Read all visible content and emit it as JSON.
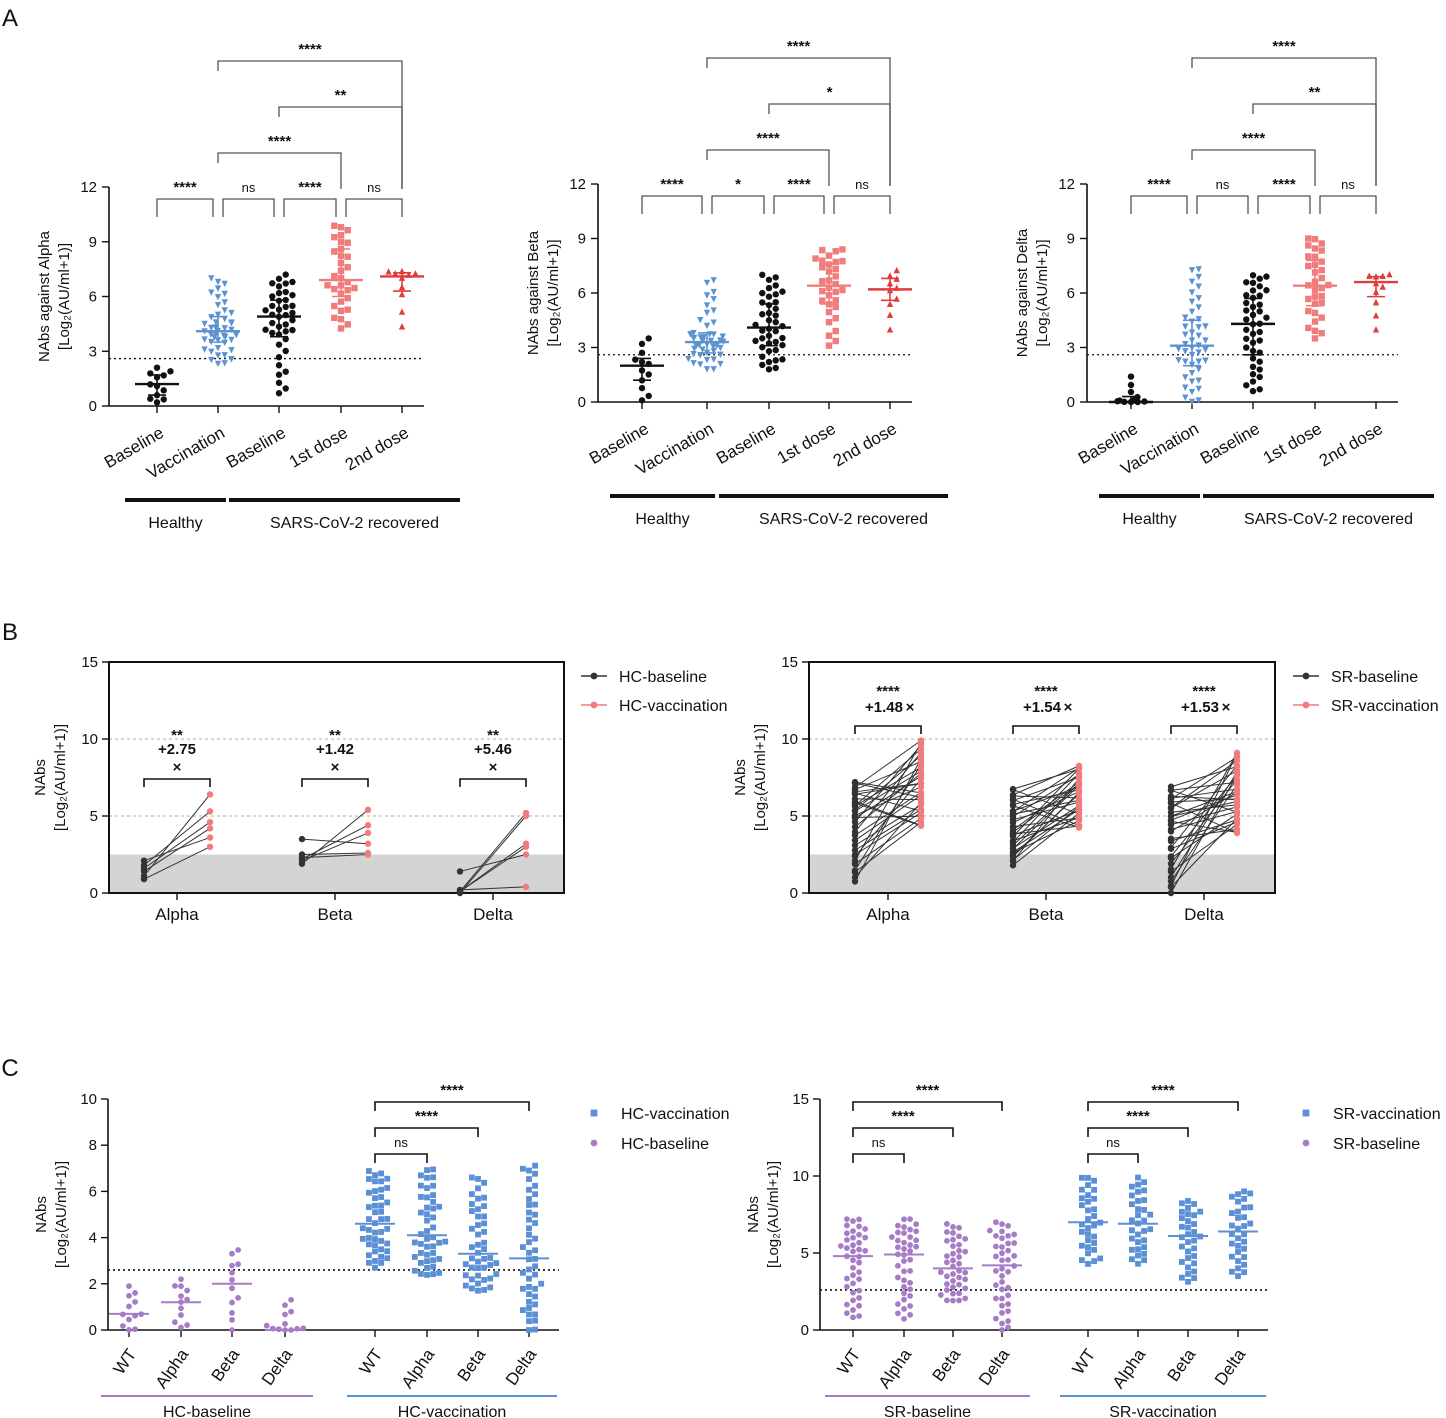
{
  "panel_labels": [
    "A",
    "B",
    "C"
  ],
  "colors": {
    "black": "#111111",
    "blue": "#5b93d1",
    "salmon": "#f07c7c",
    "red": "#e03c3c",
    "purple": "#a57cc5",
    "blueSquare": "#5b8fd6",
    "grey_band": "#d3d4d3",
    "grey_line": "#555555"
  },
  "chart_data": [
    {
      "id": "A1",
      "type": "scatter",
      "ylabel_line1": "NAbs against Alpha",
      "ylabel_line2": "[Log₂(AU/ml+1)]",
      "ylim": [
        0,
        12
      ],
      "yticks": [
        0,
        3,
        6,
        9,
        12
      ],
      "threshold": 2.6,
      "categories": [
        "Baseline",
        "Vaccination",
        "Baseline",
        "1st dose",
        "2nd dose"
      ],
      "groups": [
        {
          "label": "Healthy",
          "from": 0,
          "to": 1
        },
        {
          "label": "SARS-CoV-2 recovered",
          "from": 2,
          "to": 4
        }
      ],
      "series": [
        {
          "name": "HC-baseline",
          "shape": "circle",
          "color": "black",
          "n": 12,
          "median": 1.2,
          "min": 0.2,
          "max": 2.1,
          "q1": 0.6,
          "q3": 1.7
        },
        {
          "name": "HC-vaccination",
          "shape": "triangle-down",
          "color": "blue",
          "n": 45,
          "median": 4.1,
          "min": 2.3,
          "max": 7.1,
          "q1": 3.5,
          "q3": 4.9
        },
        {
          "name": "SR-baseline",
          "shape": "circle",
          "color": "black",
          "n": 40,
          "median": 4.9,
          "min": 0.7,
          "max": 7.2,
          "q1": 3.8,
          "q3": 5.8
        },
        {
          "name": "SR-1st dose",
          "shape": "square",
          "color": "salmon",
          "n": 32,
          "median": 6.9,
          "min": 4.2,
          "max": 10.0,
          "q1": 6.0,
          "q3": 8.6
        },
        {
          "name": "SR-2nd dose",
          "shape": "triangle-up",
          "color": "red",
          "n": 10,
          "median": 7.1,
          "min": 4.3,
          "max": 7.5,
          "q1": 6.3,
          "q3": 7.3
        }
      ],
      "comparisons": [
        {
          "from": 0,
          "to": 1,
          "label": "****",
          "level": 0
        },
        {
          "from": 1,
          "to": 2,
          "label": "ns",
          "level": 0
        },
        {
          "from": 2,
          "to": 3,
          "label": "****",
          "level": 0
        },
        {
          "from": 3,
          "to": 4,
          "label": "ns",
          "level": 0
        },
        {
          "from": 1,
          "to": 3,
          "label": "****",
          "level": 1
        },
        {
          "from": 2,
          "to": 4,
          "label": "**",
          "level": 2
        },
        {
          "from": 1,
          "to": 4,
          "label": "****",
          "level": 3
        }
      ]
    },
    {
      "id": "A2",
      "type": "scatter",
      "ylabel_line1": "NAbs against Beta",
      "ylabel_line2": "[Log₂(AU/ml+1)]",
      "ylim": [
        0,
        12
      ],
      "yticks": [
        0,
        3,
        6,
        9,
        12
      ],
      "threshold": 2.6,
      "categories": [
        "Baseline",
        "Vaccination",
        "Baseline",
        "1st dose",
        "2nd dose"
      ],
      "groups": [
        {
          "label": "Healthy",
          "from": 0,
          "to": 1
        },
        {
          "label": "SARS-CoV-2 recovered",
          "from": 2,
          "to": 4
        }
      ],
      "series": [
        {
          "name": "HC-baseline",
          "shape": "circle",
          "color": "black",
          "n": 12,
          "median": 2.0,
          "min": 0.0,
          "max": 3.5,
          "q1": 1.2,
          "q3": 2.4
        },
        {
          "name": "HC-vaccination",
          "shape": "triangle-down",
          "color": "blue",
          "n": 45,
          "median": 3.3,
          "min": 1.8,
          "max": 6.7,
          "q1": 2.7,
          "q3": 3.8
        },
        {
          "name": "SR-baseline",
          "shape": "circle",
          "color": "black",
          "n": 40,
          "median": 4.1,
          "min": 1.8,
          "max": 7.0,
          "q1": 3.1,
          "q3": 5.4
        },
        {
          "name": "SR-1st dose",
          "shape": "square",
          "color": "salmon",
          "n": 32,
          "median": 6.4,
          "min": 3.1,
          "max": 8.4,
          "q1": 5.4,
          "q3": 7.6
        },
        {
          "name": "SR-2nd dose",
          "shape": "triangle-up",
          "color": "red",
          "n": 10,
          "median": 6.2,
          "min": 4.0,
          "max": 7.3,
          "q1": 5.6,
          "q3": 6.8
        }
      ],
      "comparisons": [
        {
          "from": 0,
          "to": 1,
          "label": "****",
          "level": 0
        },
        {
          "from": 1,
          "to": 2,
          "label": "*",
          "level": 0
        },
        {
          "from": 2,
          "to": 3,
          "label": "****",
          "level": 0
        },
        {
          "from": 3,
          "to": 4,
          "label": "ns",
          "level": 0
        },
        {
          "from": 1,
          "to": 3,
          "label": "****",
          "level": 1
        },
        {
          "from": 2,
          "to": 4,
          "label": "*",
          "level": 2
        },
        {
          "from": 1,
          "to": 4,
          "label": "****",
          "level": 3
        }
      ]
    },
    {
      "id": "A3",
      "type": "scatter",
      "ylabel_line1": "NAbs against Delta",
      "ylabel_line2": "[Log₂(AU/ml+1)]",
      "ylim": [
        0,
        12
      ],
      "yticks": [
        0,
        3,
        6,
        9,
        12
      ],
      "threshold": 2.6,
      "categories": [
        "Baseline",
        "Vaccination",
        "Baseline",
        "1st dose",
        "2nd dose"
      ],
      "groups": [
        {
          "label": "Healthy",
          "from": 0,
          "to": 1
        },
        {
          "label": "SARS-CoV-2 recovered",
          "from": 2,
          "to": 4
        }
      ],
      "series": [
        {
          "name": "HC-baseline",
          "shape": "circle",
          "color": "black",
          "n": 12,
          "median": 0.0,
          "min": 0.0,
          "max": 1.4,
          "q1": 0.0,
          "q3": 0.3
        },
        {
          "name": "HC-vaccination",
          "shape": "triangle-down",
          "color": "blue",
          "n": 45,
          "median": 3.1,
          "min": 0.0,
          "max": 7.4,
          "q1": 2.0,
          "q3": 4.5
        },
        {
          "name": "SR-baseline",
          "shape": "circle",
          "color": "black",
          "n": 40,
          "median": 4.3,
          "min": 0.6,
          "max": 7.1,
          "q1": 2.6,
          "q3": 5.7
        },
        {
          "name": "SR-1st dose",
          "shape": "square",
          "color": "salmon",
          "n": 32,
          "median": 6.4,
          "min": 3.5,
          "max": 9.1,
          "q1": 5.3,
          "q3": 7.8
        },
        {
          "name": "SR-2nd dose",
          "shape": "triangle-up",
          "color": "red",
          "n": 10,
          "median": 6.6,
          "min": 4.0,
          "max": 7.1,
          "q1": 5.8,
          "q3": 6.9
        }
      ],
      "comparisons": [
        {
          "from": 0,
          "to": 1,
          "label": "****",
          "level": 0
        },
        {
          "from": 1,
          "to": 2,
          "label": "ns",
          "level": 0
        },
        {
          "from": 2,
          "to": 3,
          "label": "****",
          "level": 0
        },
        {
          "from": 3,
          "to": 4,
          "label": "ns",
          "level": 0
        },
        {
          "from": 1,
          "to": 3,
          "label": "****",
          "level": 1
        },
        {
          "from": 2,
          "to": 4,
          "label": "**",
          "level": 2
        },
        {
          "from": 1,
          "to": 4,
          "label": "****",
          "level": 3
        }
      ]
    },
    {
      "id": "B1",
      "type": "paired-line",
      "ylabel_line1": "NAbs",
      "ylabel_line2": "[Log₂(AU/ml+1)]",
      "ylim": [
        0,
        15
      ],
      "yticks": [
        0,
        5,
        10,
        15
      ],
      "gridlines": [
        5,
        10
      ],
      "band_max": 2.5,
      "categories": [
        "Alpha",
        "Beta",
        "Delta"
      ],
      "legend": [
        "HC-baseline",
        "HC-vaccination"
      ],
      "pairs": [
        {
          "before": [
            0.9,
            1.1,
            1.4,
            1.6,
            1.8,
            2.1
          ],
          "after": [
            3.0,
            3.6,
            4.2,
            4.6,
            5.3,
            6.4
          ]
        },
        {
          "before": [
            1.9,
            2.1,
            2.2,
            2.3,
            2.5,
            3.5
          ],
          "after": [
            2.5,
            2.6,
            3.2,
            3.9,
            4.4,
            5.4
          ]
        },
        {
          "before": [
            0.0,
            0.1,
            0.1,
            0.2,
            1.4,
            0.1
          ],
          "after": [
            0.4,
            2.5,
            3.0,
            3.2,
            5.0,
            5.2
          ]
        }
      ],
      "annotations": [
        {
          "stars": "**",
          "fold": "+2.75",
          "mark": "×"
        },
        {
          "stars": "**",
          "fold": "+1.42",
          "mark": "×"
        },
        {
          "stars": "**",
          "fold": "+5.46",
          "mark": "×"
        }
      ]
    },
    {
      "id": "B2",
      "type": "paired-line",
      "ylabel_line1": "NAbs",
      "ylabel_line2": "[Log₂(AU/ml+1)]",
      "ylim": [
        0,
        15
      ],
      "yticks": [
        0,
        5,
        10,
        15
      ],
      "gridlines": [
        5,
        10
      ],
      "band_max": 2.5,
      "categories": [
        "Alpha",
        "Beta",
        "Delta"
      ],
      "legend": [
        "SR-baseline",
        "SR-vaccination"
      ],
      "pairs": [
        {
          "n": 32,
          "before_median": 4.9,
          "before_min": 0.7,
          "before_max": 7.2,
          "after_median": 6.9,
          "after_min": 4.3,
          "after_max": 10.0
        },
        {
          "n": 32,
          "before_median": 4.1,
          "before_min": 1.8,
          "before_max": 6.8,
          "after_median": 6.4,
          "after_min": 4.2,
          "after_max": 8.3
        },
        {
          "n": 32,
          "before_median": 4.3,
          "before_min": 0.0,
          "before_max": 6.9,
          "after_median": 6.4,
          "after_min": 3.9,
          "after_max": 9.1
        }
      ],
      "annotations": [
        {
          "stars": "****",
          "fold": "+1.48",
          "mark": "×"
        },
        {
          "stars": "****",
          "fold": "+1.54",
          "mark": "×"
        },
        {
          "stars": "****",
          "fold": "+1.53",
          "mark": "×"
        }
      ]
    },
    {
      "id": "C1",
      "type": "scatter",
      "ylabel_line1": "NAbs",
      "ylabel_line2": "[Log₂(AU/ml+1)]",
      "ylim": [
        0,
        10
      ],
      "yticks": [
        0,
        2,
        4,
        6,
        8,
        10
      ],
      "threshold": 2.6,
      "categories": [
        "WT",
        "Alpha",
        "Beta",
        "Delta",
        "WT",
        "Alpha",
        "Beta",
        "Delta"
      ],
      "groups": [
        {
          "label": "HC-baseline",
          "from": 0,
          "to": 3,
          "color": "purple"
        },
        {
          "label": "HC-vaccination",
          "from": 4,
          "to": 7,
          "color": "blue"
        }
      ],
      "legend": [
        {
          "label": "HC-vaccination",
          "shape": "square",
          "color": "blueSquare"
        },
        {
          "label": "HC-baseline",
          "shape": "circle",
          "color": "purple"
        }
      ],
      "series": [
        {
          "name": "HC-baseline WT",
          "shape": "circle",
          "color": "purple",
          "n": 12,
          "median": 0.7,
          "min": 0.0,
          "max": 1.9
        },
        {
          "name": "HC-baseline Alpha",
          "shape": "circle",
          "color": "purple",
          "n": 12,
          "median": 1.2,
          "min": 0.0,
          "max": 2.2
        },
        {
          "name": "HC-baseline Beta",
          "shape": "circle",
          "color": "purple",
          "n": 12,
          "median": 2.0,
          "min": 0.0,
          "max": 3.5
        },
        {
          "name": "HC-baseline Delta",
          "shape": "circle",
          "color": "purple",
          "n": 12,
          "median": 0.0,
          "min": 0.0,
          "max": 1.4
        },
        {
          "name": "HC-vaccination WT",
          "shape": "square",
          "color": "blueSquare",
          "n": 45,
          "median": 4.6,
          "min": 2.7,
          "max": 7.0
        },
        {
          "name": "HC-vaccination Alpha",
          "shape": "square",
          "color": "blueSquare",
          "n": 45,
          "median": 4.1,
          "min": 2.3,
          "max": 7.0
        },
        {
          "name": "HC-vaccination Beta",
          "shape": "square",
          "color": "blueSquare",
          "n": 45,
          "median": 3.3,
          "min": 1.7,
          "max": 6.6
        },
        {
          "name": "HC-vaccination Delta",
          "shape": "square",
          "color": "blueSquare",
          "n": 45,
          "median": 3.1,
          "min": 0.0,
          "max": 7.2
        }
      ],
      "comparisons": [
        {
          "from": 4,
          "to": 5,
          "label": "ns",
          "level": 0
        },
        {
          "from": 4,
          "to": 6,
          "label": "****",
          "level": 1
        },
        {
          "from": 4,
          "to": 7,
          "label": "****",
          "level": 2
        }
      ]
    },
    {
      "id": "C2",
      "type": "scatter",
      "ylabel_line1": "NAbs",
      "ylabel_line2": "[Log₂(AU/ml+1)]",
      "ylim": [
        0,
        15
      ],
      "yticks": [
        0,
        5,
        10,
        15
      ],
      "threshold": 2.6,
      "categories": [
        "WT",
        "Alpha",
        "Beta",
        "Delta",
        "WT",
        "Alpha",
        "Beta",
        "Delta"
      ],
      "groups": [
        {
          "label": "SR-baseline",
          "from": 0,
          "to": 3,
          "color": "purple"
        },
        {
          "label": "SR-vaccination",
          "from": 4,
          "to": 7,
          "color": "blue"
        }
      ],
      "legend": [
        {
          "label": "SR-vaccination",
          "shape": "square",
          "color": "blueSquare"
        },
        {
          "label": "SR-baseline",
          "shape": "circle",
          "color": "purple"
        }
      ],
      "series": [
        {
          "name": "SR-baseline WT",
          "shape": "circle",
          "color": "purple",
          "n": 40,
          "median": 4.8,
          "min": 0.7,
          "max": 7.2
        },
        {
          "name": "SR-baseline Alpha",
          "shape": "circle",
          "color": "purple",
          "n": 40,
          "median": 4.9,
          "min": 0.7,
          "max": 7.2
        },
        {
          "name": "SR-baseline Beta",
          "shape": "circle",
          "color": "purple",
          "n": 40,
          "median": 4.0,
          "min": 1.8,
          "max": 6.9
        },
        {
          "name": "SR-baseline Delta",
          "shape": "circle",
          "color": "purple",
          "n": 40,
          "median": 4.2,
          "min": 0.0,
          "max": 7.0
        },
        {
          "name": "SR-vaccination WT",
          "shape": "square",
          "color": "blueSquare",
          "n": 32,
          "median": 7.0,
          "min": 4.2,
          "max": 10.0
        },
        {
          "name": "SR-vaccination Alpha",
          "shape": "square",
          "color": "blueSquare",
          "n": 32,
          "median": 6.9,
          "min": 4.3,
          "max": 9.9
        },
        {
          "name": "SR-vaccination Beta",
          "shape": "square",
          "color": "blueSquare",
          "n": 32,
          "median": 6.1,
          "min": 3.1,
          "max": 8.4
        },
        {
          "name": "SR-vaccination Delta",
          "shape": "square",
          "color": "blueSquare",
          "n": 32,
          "median": 6.4,
          "min": 3.5,
          "max": 9.1
        }
      ],
      "comparisons": [
        {
          "from": 4,
          "to": 5,
          "label": "ns",
          "level": 0
        },
        {
          "from": 4,
          "to": 6,
          "label": "****",
          "level": 1
        },
        {
          "from": 4,
          "to": 7,
          "label": "****",
          "level": 2
        },
        {
          "from": 0,
          "to": 1,
          "label": "ns",
          "level": 0
        },
        {
          "from": 0,
          "to": 2,
          "label": "****",
          "level": 1
        },
        {
          "from": 0,
          "to": 3,
          "label": "****",
          "level": 2
        }
      ]
    }
  ]
}
